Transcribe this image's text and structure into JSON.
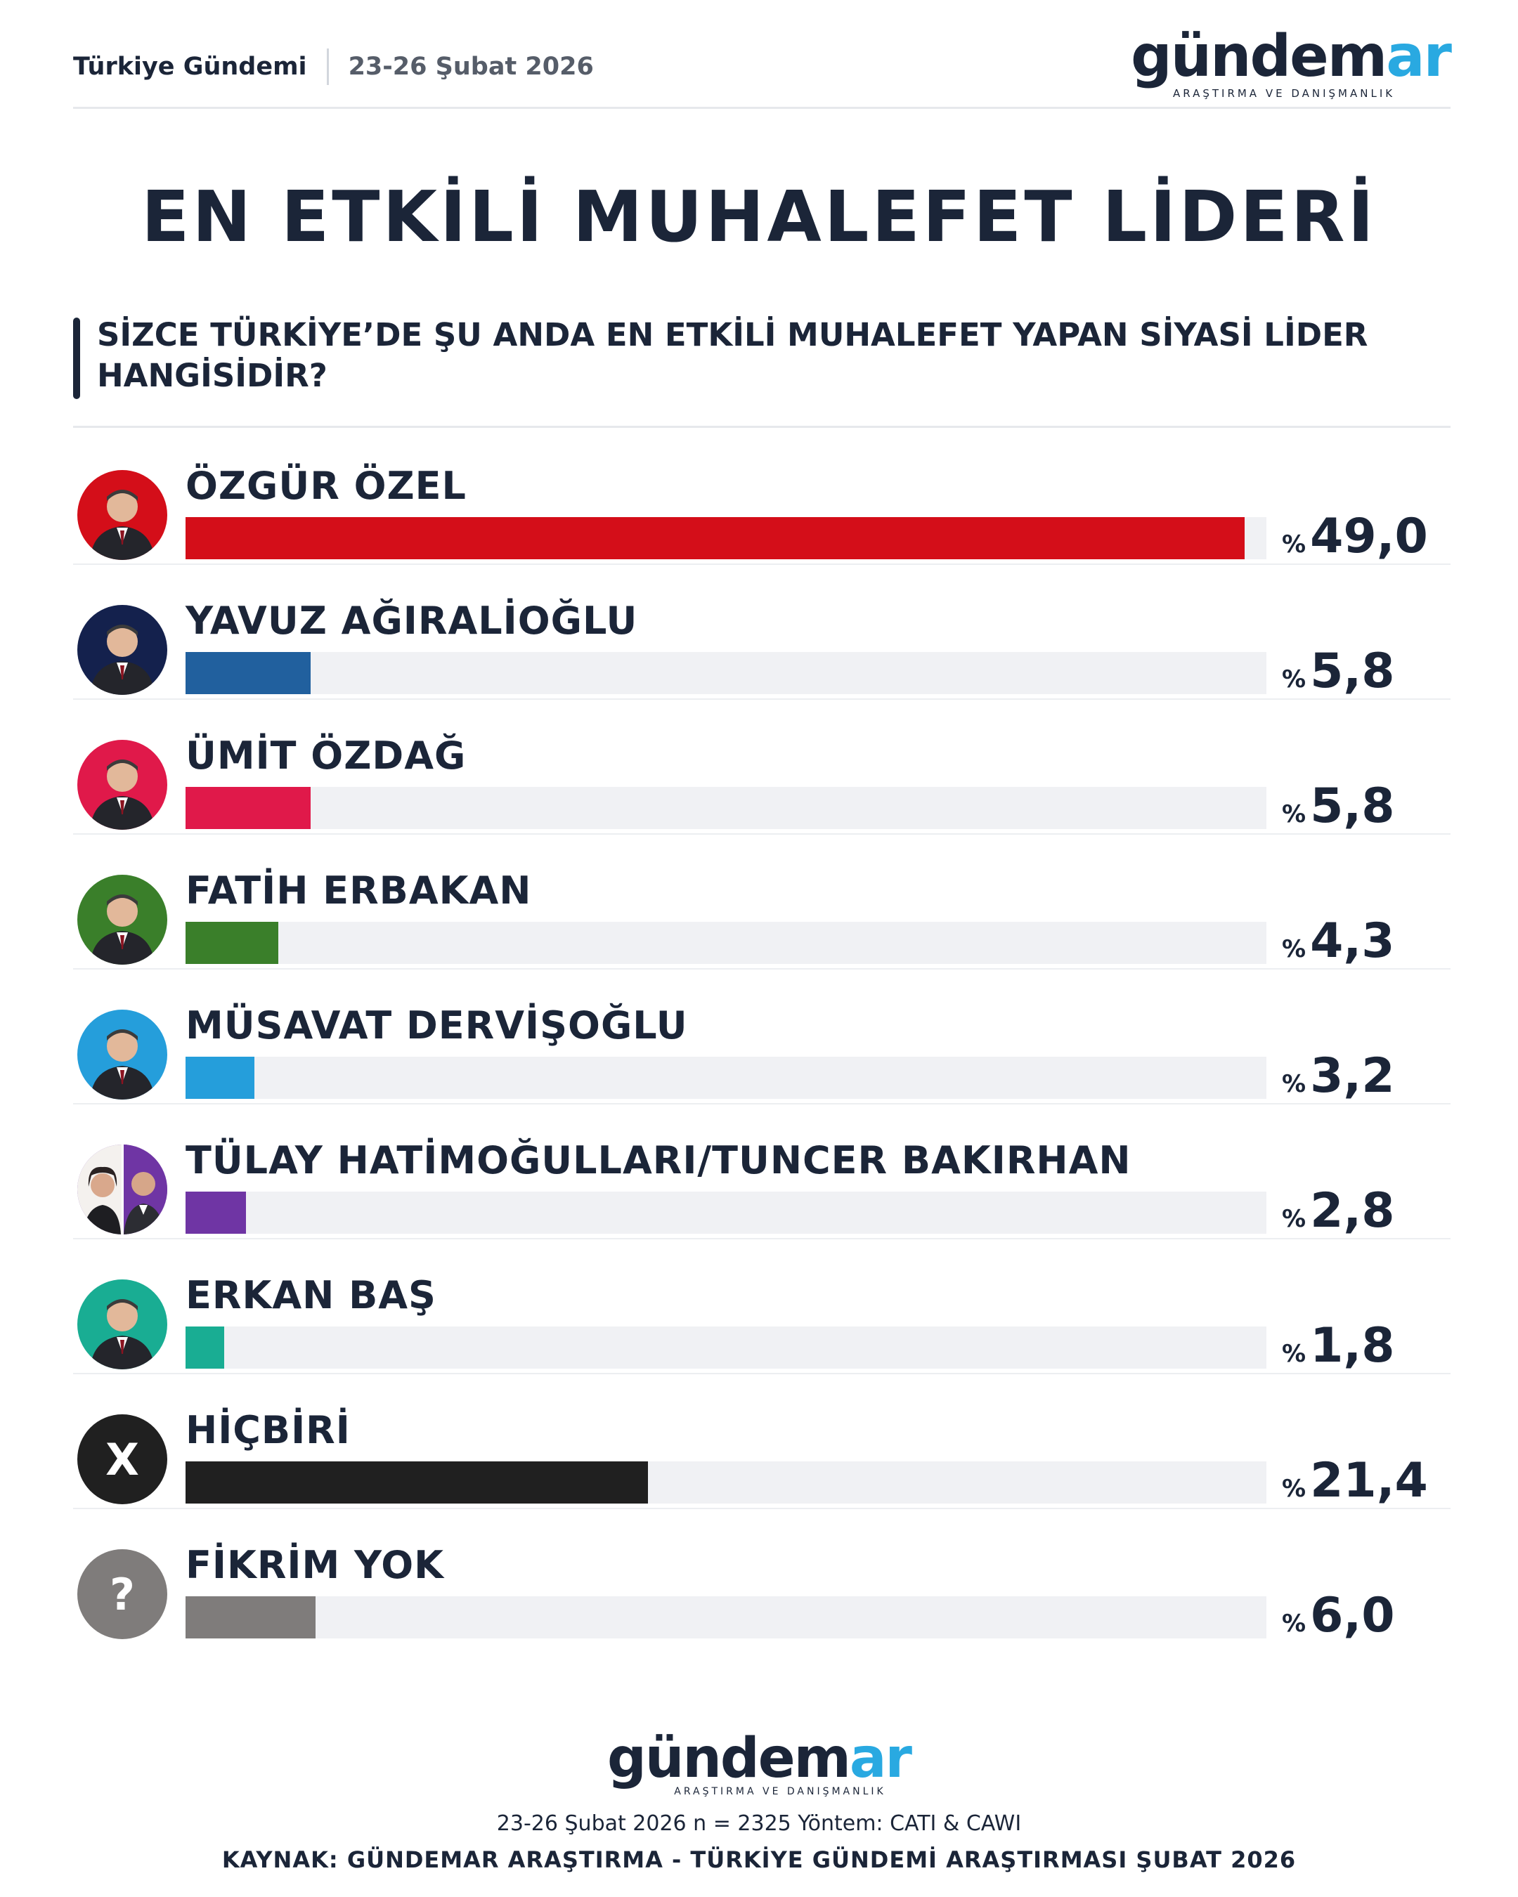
{
  "header": {
    "title": "Türkiye Gündemi",
    "date": "23-26 Şubat 2026"
  },
  "brand": {
    "word_main": "gündem",
    "word_accent": "ar",
    "tagline": "ARAŞTIRMA VE DANIŞMANLIK",
    "accent_color": "#29a9e1",
    "main_color": "#1b2538"
  },
  "main_title": "EN ETKİLİ MUHALEFET LİDERİ",
  "question": "SİZCE TÜRKİYE’DE ŞU ANDA EN ETKİLİ MUHALEFET YAPAN SİYASİ LİDER HANGİSİDİR?",
  "chart_data": {
    "type": "bar",
    "orientation": "horizontal",
    "value_prefix": "%",
    "xlim": [
      0,
      50
    ],
    "categories": [
      "ÖZGÜR ÖZEL",
      "YAVUZ AĞIRALİOĞLU",
      "ÜMİT ÖZDAĞ",
      "FATİH ERBAKAN",
      "MÜSAVAT DERVİŞOĞLU",
      "TÜLAY HATİMOĞULLARI/TUNCER BAKIRHAN",
      "ERKAN BAŞ",
      "HİÇBİRİ",
      "FİKRİM YOK"
    ],
    "values": [
      49.0,
      5.8,
      5.8,
      4.3,
      3.2,
      2.8,
      1.8,
      21.4,
      6.0
    ],
    "labels": [
      "49,0",
      "5,8",
      "5,8",
      "4,3",
      "3,2",
      "2,8",
      "1,8",
      "21,4",
      "6,0"
    ],
    "colors": [
      "#d40e19",
      "#21609e",
      "#e0194a",
      "#3a7f2a",
      "#259edb",
      "#6f35a4",
      "#19ad93",
      "#202020",
      "#7f7c7b"
    ],
    "avatar_backgrounds": [
      "#d40e19",
      "#14214d",
      "#e0194a",
      "#3a7f2a",
      "#259edb",
      "#6f35a4",
      "#19ad93",
      "#202020",
      "#7f7c7b"
    ],
    "avatar_icons": [
      "person-photo-icon",
      "person-photo-icon",
      "person-photo-icon",
      "person-photo-icon",
      "person-photo-icon",
      "two-persons-photo-icon",
      "person-photo-icon",
      "x-mark-icon",
      "question-mark-icon"
    ],
    "avatar_glyphs": [
      "",
      "",
      "",
      "",
      "",
      "",
      "",
      "X",
      "?"
    ]
  },
  "footer": {
    "meta": "23-26 Şubat 2026 n = 2325 Yöntem: CATI & CAWI",
    "source": "KAYNAK: GÜNDEMAR ARAŞTIRMA - TÜRKİYE GÜNDEMİ ARAŞTIRMASI ŞUBAT 2026"
  }
}
